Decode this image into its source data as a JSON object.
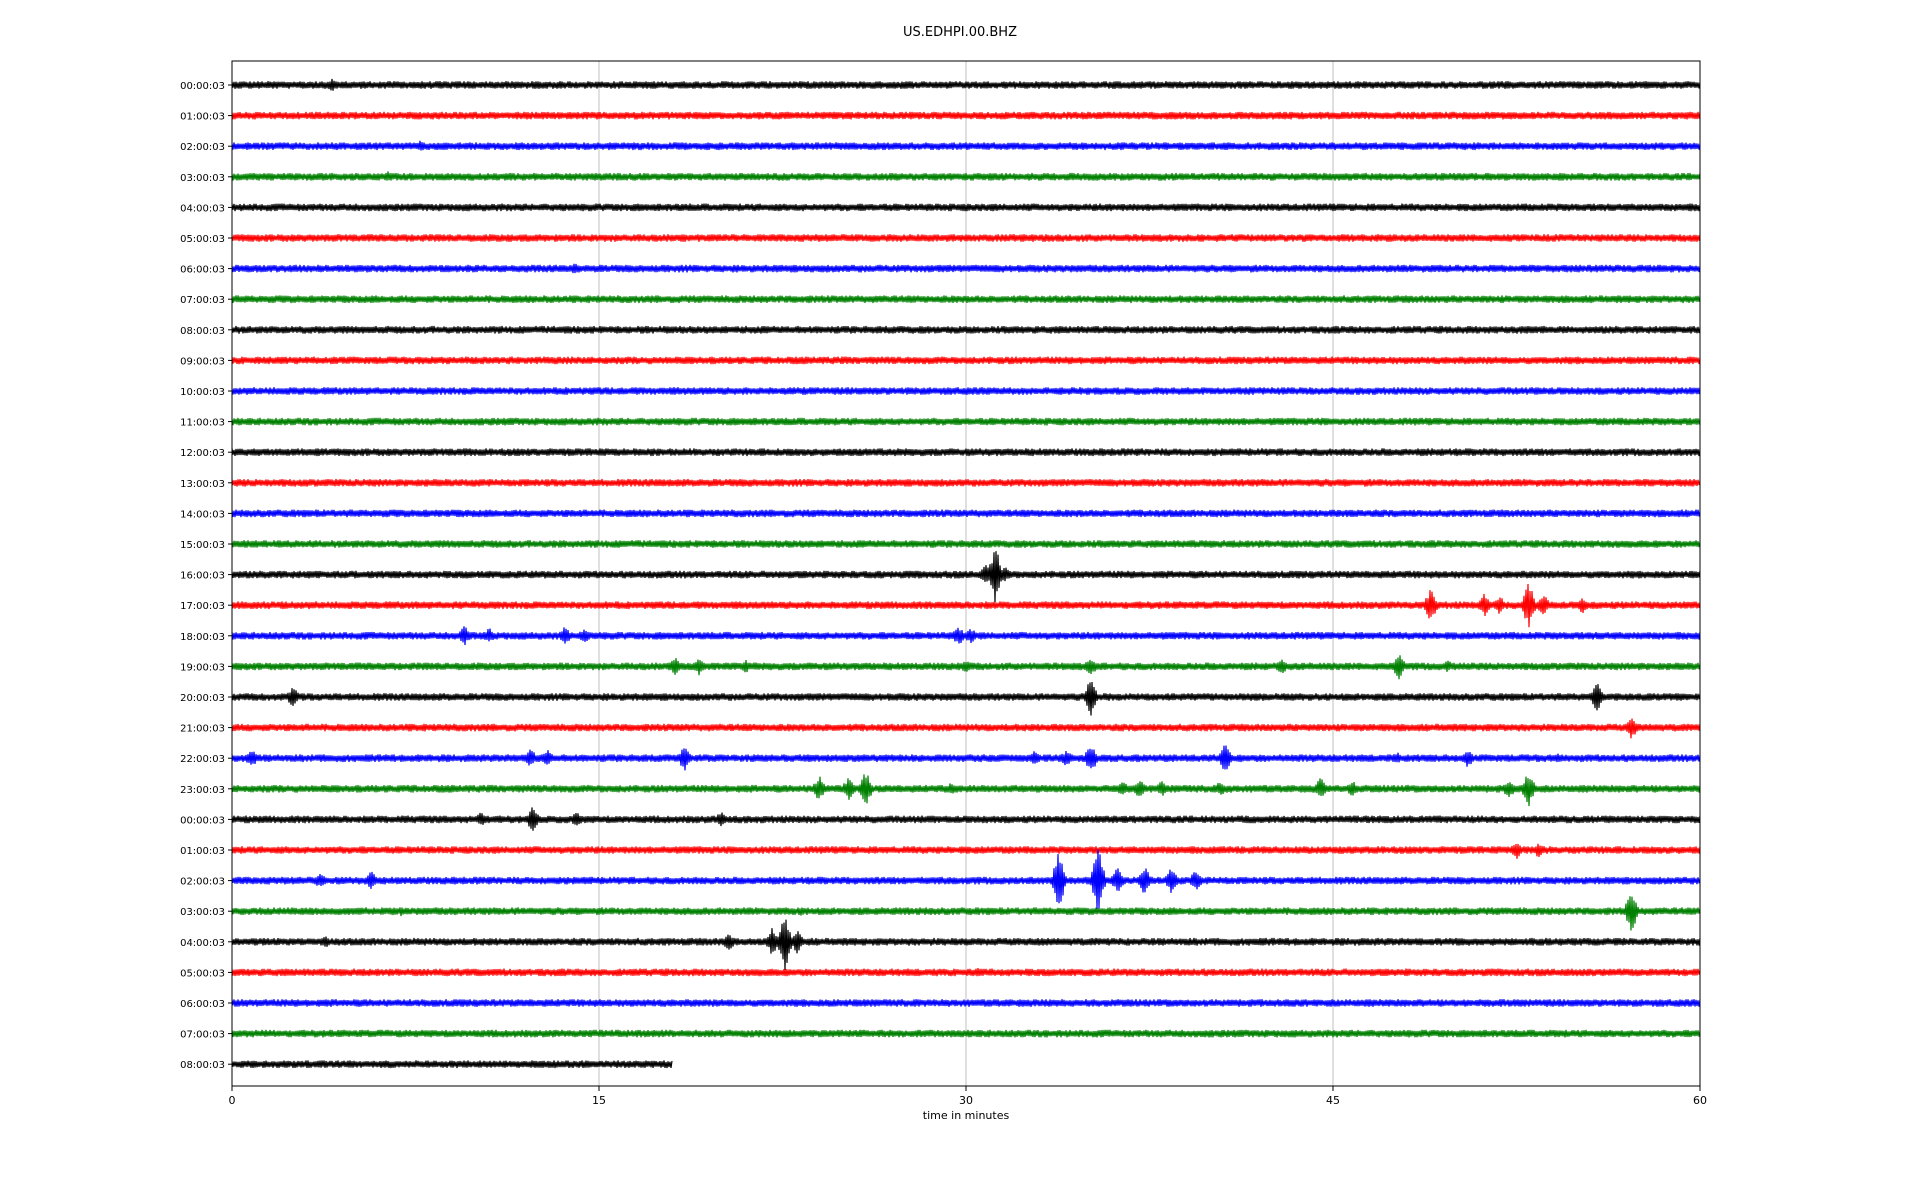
{
  "chart_data": {
    "type": "line",
    "title": "US.EDHPI.00.BHZ",
    "xlabel": "time in minutes",
    "ylabel": "",
    "xlim": [
      0,
      60
    ],
    "x_ticks": [
      0,
      15,
      30,
      45,
      60
    ],
    "grid": "vertical",
    "trace_colors": [
      "#000000",
      "#ff0000",
      "#0000ff",
      "#008000"
    ],
    "rows": [
      {
        "label": "00:00:03",
        "end_min": 60,
        "events": [
          [
            4.1,
            0.4
          ],
          [
            45.6,
            0.25
          ]
        ]
      },
      {
        "label": "01:00:03",
        "end_min": 60,
        "events": [
          [
            42.6,
            0.2
          ]
        ]
      },
      {
        "label": "02:00:03",
        "end_min": 60,
        "events": [
          [
            7.7,
            0.4
          ]
        ]
      },
      {
        "label": "03:00:03",
        "end_min": 60,
        "events": [
          [
            6.4,
            0.35
          ],
          [
            31.4,
            0.2
          ]
        ]
      },
      {
        "label": "04:00:03",
        "end_min": 60,
        "events": []
      },
      {
        "label": "05:00:03",
        "end_min": 60,
        "events": []
      },
      {
        "label": "06:00:03",
        "end_min": 60,
        "events": [
          [
            14.0,
            0.35
          ],
          [
            11.7,
            0.2
          ]
        ]
      },
      {
        "label": "07:00:03",
        "end_min": 60,
        "events": []
      },
      {
        "label": "08:00:03",
        "end_min": 60,
        "events": [
          [
            53.0,
            0.2
          ]
        ]
      },
      {
        "label": "09:00:03",
        "end_min": 60,
        "events": []
      },
      {
        "label": "10:00:03",
        "end_min": 60,
        "events": [
          [
            23.6,
            0.2
          ],
          [
            53.4,
            0.2
          ]
        ]
      },
      {
        "label": "11:00:03",
        "end_min": 60,
        "events": []
      },
      {
        "label": "12:00:03",
        "end_min": 60,
        "events": [
          [
            9.8,
            0.2
          ]
        ]
      },
      {
        "label": "13:00:03",
        "end_min": 60,
        "events": []
      },
      {
        "label": "14:00:03",
        "end_min": 60,
        "events": [
          [
            46.0,
            0.2
          ]
        ]
      },
      {
        "label": "15:00:03",
        "end_min": 60,
        "events": []
      },
      {
        "label": "16:00:03",
        "end_min": 60,
        "events": [
          [
            31.2,
            1.8
          ],
          [
            30.8,
            0.6
          ],
          [
            31.6,
            0.5
          ]
        ]
      },
      {
        "label": "17:00:03",
        "end_min": 60,
        "events": [
          [
            49.0,
            1.0
          ],
          [
            51.2,
            0.8
          ],
          [
            51.8,
            0.6
          ],
          [
            53.0,
            1.4
          ],
          [
            53.6,
            0.7
          ],
          [
            55.2,
            0.5
          ]
        ]
      },
      {
        "label": "18:00:03",
        "end_min": 60,
        "events": [
          [
            9.5,
            0.6
          ],
          [
            10.5,
            0.5
          ],
          [
            13.6,
            0.6
          ],
          [
            14.4,
            0.5
          ],
          [
            29.7,
            0.6
          ],
          [
            30.2,
            0.5
          ]
        ]
      },
      {
        "label": "19:00:03",
        "end_min": 60,
        "events": [
          [
            18.1,
            0.6
          ],
          [
            19.1,
            0.6
          ],
          [
            21.0,
            0.4
          ],
          [
            30.0,
            0.4
          ],
          [
            35.1,
            0.6
          ],
          [
            42.9,
            0.5
          ],
          [
            47.7,
            0.8
          ],
          [
            49.7,
            0.4
          ]
        ]
      },
      {
        "label": "20:00:03",
        "end_min": 60,
        "events": [
          [
            2.5,
            0.7
          ],
          [
            35.1,
            1.2
          ],
          [
            55.8,
            0.9
          ]
        ]
      },
      {
        "label": "21:00:03",
        "end_min": 60,
        "events": [
          [
            57.2,
            0.7
          ]
        ]
      },
      {
        "label": "22:00:03",
        "end_min": 60,
        "events": [
          [
            0.8,
            0.6
          ],
          [
            12.2,
            0.6
          ],
          [
            12.9,
            0.5
          ],
          [
            18.5,
            0.8
          ],
          [
            32.8,
            0.5
          ],
          [
            34.1,
            0.5
          ],
          [
            35.1,
            1.0
          ],
          [
            40.6,
            0.9
          ],
          [
            47.6,
            0.4
          ],
          [
            50.5,
            0.6
          ],
          [
            54.2,
            0.3
          ]
        ]
      },
      {
        "label": "23:00:03",
        "end_min": 60,
        "events": [
          [
            24.0,
            0.8
          ],
          [
            25.2,
            0.7
          ],
          [
            25.9,
            1.1
          ],
          [
            29.4,
            0.4
          ],
          [
            36.4,
            0.5
          ],
          [
            37.1,
            0.6
          ],
          [
            38.0,
            0.5
          ],
          [
            40.4,
            0.5
          ],
          [
            44.5,
            0.7
          ],
          [
            45.8,
            0.5
          ],
          [
            52.2,
            0.6
          ],
          [
            53.0,
            1.1
          ]
        ]
      },
      {
        "label": "00:00:03",
        "end_min": 60,
        "events": [
          [
            10.2,
            0.5
          ],
          [
            12.3,
            0.8
          ],
          [
            14.1,
            0.5
          ],
          [
            20.0,
            0.5
          ]
        ]
      },
      {
        "label": "01:00:03",
        "end_min": 60,
        "events": [
          [
            52.5,
            0.6
          ],
          [
            53.4,
            0.5
          ]
        ]
      },
      {
        "label": "02:00:03",
        "end_min": 60,
        "events": [
          [
            3.6,
            0.5
          ],
          [
            5.7,
            0.6
          ],
          [
            33.8,
            1.8
          ],
          [
            35.4,
            2.0
          ],
          [
            36.2,
            0.8
          ],
          [
            37.3,
            0.9
          ],
          [
            38.4,
            0.8
          ],
          [
            39.4,
            0.7
          ]
        ]
      },
      {
        "label": "03:00:03",
        "end_min": 60,
        "events": [
          [
            6.9,
            0.3
          ],
          [
            23.3,
            0.3
          ],
          [
            57.2,
            1.3
          ]
        ]
      },
      {
        "label": "04:00:03",
        "end_min": 60,
        "events": [
          [
            3.8,
            0.4
          ],
          [
            20.3,
            0.6
          ],
          [
            22.1,
            0.9
          ],
          [
            22.6,
            1.8
          ],
          [
            23.1,
            0.7
          ]
        ]
      },
      {
        "label": "05:00:03",
        "end_min": 60,
        "events": [
          [
            30.5,
            0.3
          ]
        ]
      },
      {
        "label": "06:00:03",
        "end_min": 60,
        "events": []
      },
      {
        "label": "07:00:03",
        "end_min": 60,
        "events": []
      },
      {
        "label": "08:00:03",
        "end_min": 18,
        "events": []
      }
    ]
  }
}
